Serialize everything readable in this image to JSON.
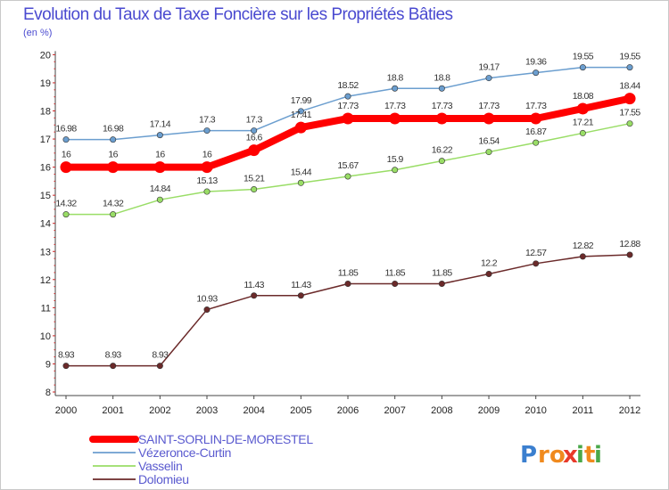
{
  "chart_data": {
    "type": "line",
    "title": "Evolution du Taux de Taxe Foncière sur les Propriétés Bâties",
    "ylabel": "(en %)",
    "xlabel": "",
    "ylim": [
      8,
      20
    ],
    "yticks": [
      "8",
      "9",
      "10",
      "11",
      "12",
      "13",
      "14",
      "15",
      "16",
      "17",
      "18",
      "19",
      "20"
    ],
    "categories": [
      "2000",
      "2001",
      "2002",
      "2003",
      "2004",
      "2005",
      "2006",
      "2007",
      "2008",
      "2009",
      "2010",
      "2011",
      "2012"
    ],
    "grid": false,
    "legend": "bottom-left",
    "series": [
      {
        "name": "SAINT-SORLIN-DE-MORESTEL",
        "color": "#ff0000",
        "values": [
          16,
          16,
          16,
          16,
          16.6,
          17.41,
          17.73,
          17.73,
          17.73,
          17.73,
          17.73,
          18.08,
          18.44
        ],
        "labels": [
          "16",
          "16",
          "16",
          "16",
          "16.6",
          "17.41",
          "17.73",
          "17.73",
          "17.73",
          "17.73",
          "17.73",
          "18.08",
          "18.44"
        ]
      },
      {
        "name": "Vézeronce-Curtin",
        "color": "#6b9ecf",
        "values": [
          16.98,
          16.98,
          17.14,
          17.3,
          17.3,
          17.99,
          18.52,
          18.8,
          18.8,
          19.17,
          19.36,
          19.55,
          19.55
        ],
        "labels": [
          "16.98",
          "16.98",
          "17.14",
          "17.3",
          "17.3",
          "17.99",
          "18.52",
          "18.8",
          "18.8",
          "19.17",
          "19.36",
          "19.55",
          "19.55"
        ]
      },
      {
        "name": "Vasselin",
        "color": "#99dd66",
        "values": [
          14.32,
          14.32,
          14.84,
          15.13,
          15.21,
          15.44,
          15.67,
          15.9,
          16.22,
          16.54,
          16.87,
          17.21,
          17.55
        ],
        "labels": [
          "14.32",
          "14.32",
          "14.84",
          "15.13",
          "15.21",
          "15.44",
          "15.67",
          "15.9",
          "16.22",
          "16.54",
          "16.87",
          "17.21",
          "17.55"
        ]
      },
      {
        "name": "Dolomieu",
        "color": "#6b2a2a",
        "values": [
          8.93,
          8.93,
          8.93,
          10.93,
          11.43,
          11.43,
          11.85,
          11.85,
          11.85,
          12.2,
          12.57,
          12.82,
          12.88
        ],
        "labels": [
          "8.93",
          "8.93",
          "8.93",
          "10.93",
          "11.43",
          "11.43",
          "11.85",
          "11.85",
          "11.85",
          "12.2",
          "12.57",
          "12.82",
          "12.88"
        ]
      }
    ]
  },
  "brand": {
    "name": "Proxiti",
    "letters": [
      "P",
      "r",
      "o",
      "x",
      "i",
      "t",
      "i"
    ],
    "colors": [
      "#3b7fcf",
      "#f08a1e",
      "#f08a1e",
      "#e83a2a",
      "#4aa84a",
      "#f08a1e",
      "#4aa84a"
    ]
  },
  "colors": {
    "title": "#4a4ad0",
    "subtitle": "#4a4ad0",
    "axis": "#444444",
    "tick_marks": "#cc2222"
  }
}
